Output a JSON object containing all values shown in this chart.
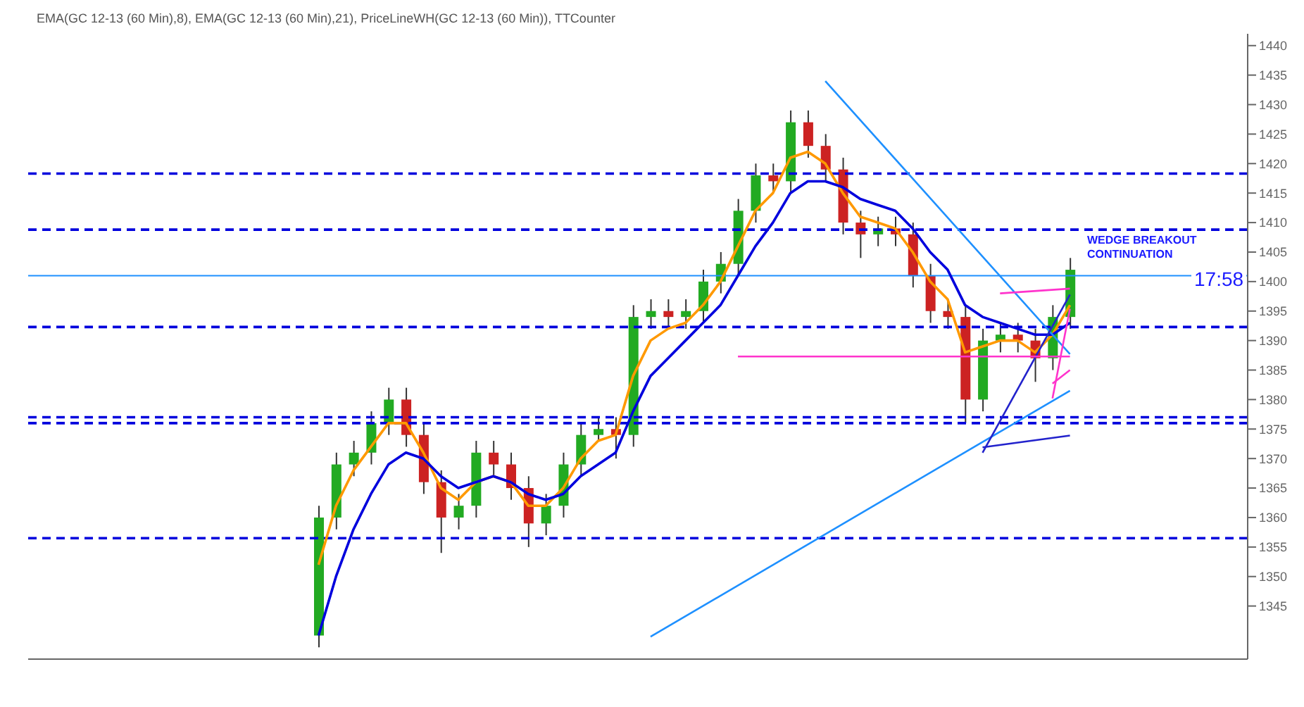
{
  "chart_data": {
    "type": "candlestick",
    "subtitle": "EMA(GC 12-13 (60 Min),8), EMA(GC 12-13 (60 Min),21), PriceLineWH(GC 12-13 (60 Min)), TTCounter",
    "categories": [
      null,
      null,
      null,
      null,
      null,
      null,
      null,
      null,
      null,
      null,
      null,
      null,
      null,
      null,
      null,
      null,
      null,
      null,
      null,
      null,
      null,
      null,
      null,
      null,
      null,
      null,
      null,
      null,
      null,
      null,
      null,
      null,
      null,
      null,
      null,
      null,
      null,
      null,
      null,
      null,
      null,
      null,
      null,
      null
    ],
    "ohlc": [
      [
        1340,
        1362,
        1338,
        1360
      ],
      [
        1360,
        1371,
        1358,
        1369
      ],
      [
        1369,
        1373,
        1367,
        1371
      ],
      [
        1371,
        1378,
        1369,
        1376
      ],
      [
        1376,
        1382,
        1374,
        1380
      ],
      [
        1380,
        1382,
        1372,
        1374
      ],
      [
        1374,
        1376,
        1364,
        1366
      ],
      [
        1366,
        1368,
        1354,
        1360
      ],
      [
        1360,
        1364,
        1358,
        1362
      ],
      [
        1362,
        1373,
        1360,
        1371
      ],
      [
        1371,
        1373,
        1367,
        1369
      ],
      [
        1369,
        1371,
        1363,
        1365
      ],
      [
        1365,
        1367,
        1355,
        1359
      ],
      [
        1359,
        1364,
        1357,
        1362
      ],
      [
        1362,
        1371,
        1360,
        1369
      ],
      [
        1369,
        1376,
        1367,
        1374
      ],
      [
        1374,
        1377,
        1373,
        1375
      ],
      [
        1375,
        1377,
        1370,
        1374
      ],
      [
        1374,
        1396,
        1372,
        1394
      ],
      [
        1394,
        1397,
        1392,
        1395
      ],
      [
        1395,
        1397,
        1392,
        1394
      ],
      [
        1394,
        1397,
        1392,
        1395
      ],
      [
        1395,
        1402,
        1393,
        1400
      ],
      [
        1400,
        1405,
        1398,
        1403
      ],
      [
        1403,
        1414,
        1401,
        1412
      ],
      [
        1412,
        1420,
        1410,
        1418
      ],
      [
        1418,
        1420,
        1415,
        1417
      ],
      [
        1417,
        1429,
        1415,
        1427
      ],
      [
        1427,
        1429,
        1421,
        1423
      ],
      [
        1423,
        1425,
        1417,
        1419
      ],
      [
        1419,
        1421,
        1408,
        1410
      ],
      [
        1410,
        1412,
        1404,
        1408
      ],
      [
        1408,
        1411,
        1406,
        1409
      ],
      [
        1409,
        1411,
        1406,
        1408
      ],
      [
        1408,
        1410,
        1399,
        1401
      ],
      [
        1401,
        1403,
        1393,
        1395
      ],
      [
        1395,
        1397,
        1392,
        1394
      ],
      [
        1394,
        1396,
        1376,
        1380
      ],
      [
        1380,
        1392,
        1378,
        1390
      ],
      [
        1390,
        1393,
        1388,
        1391
      ],
      [
        1391,
        1393,
        1388,
        1390
      ],
      [
        1390,
        1392,
        1383,
        1387
      ],
      [
        1387,
        1396,
        1385,
        1394
      ],
      [
        1394,
        1404,
        1392,
        1402
      ]
    ],
    "colors": [
      "#22aa22",
      "#22aa22",
      "#22aa22",
      "#22aa22",
      "#22aa22",
      "#cc2222",
      "#cc2222",
      "#cc2222",
      "#22aa22",
      "#22aa22",
      "#cc2222",
      "#cc2222",
      "#cc2222",
      "#22aa22",
      "#22aa22",
      "#22aa22",
      "#22aa22",
      "#cc2222",
      "#22aa22",
      "#22aa22",
      "#cc2222",
      "#22aa22",
      "#22aa22",
      "#22aa22",
      "#22aa22",
      "#22aa22",
      "#cc2222",
      "#22aa22",
      "#cc2222",
      "#cc2222",
      "#cc2222",
      "#cc2222",
      "#22aa22",
      "#cc2222",
      "#cc2222",
      "#cc2222",
      "#cc2222",
      "#cc2222",
      "#22aa22",
      "#22aa22",
      "#cc2222",
      "#cc2222",
      "#22aa22",
      "#22aa22"
    ],
    "series": [
      {
        "type": "line",
        "color": "#ff9900",
        "values": [
          1352,
          1362,
          1368,
          1372,
          1376,
          1376,
          1371,
          1365,
          1363,
          1366,
          1367,
          1366,
          1362,
          1362,
          1365,
          1370,
          1373,
          1374,
          1384,
          1390,
          1392,
          1393,
          1396,
          1400,
          1406,
          1412,
          1415,
          1421,
          1422,
          1420,
          1415,
          1411,
          1410,
          1409,
          1405,
          1400,
          1397,
          1388,
          1389,
          1390,
          1390,
          1388,
          1391,
          1396
        ]
      },
      {
        "type": "line",
        "color": "#0000dd",
        "values": [
          1340,
          1350,
          1358,
          1364,
          1369,
          1371,
          1370,
          1367,
          1365,
          1366,
          1367,
          1366,
          1364,
          1363,
          1364,
          1367,
          1369,
          1371,
          1378,
          1384,
          1387,
          1390,
          1393,
          1396,
          1401,
          1406,
          1410,
          1415,
          1417,
          1417,
          1416,
          1414,
          1413,
          1412,
          1409,
          1405,
          1402,
          1396,
          1394,
          1393,
          1392,
          1391,
          1391,
          1393
        ]
      },
      {
        "type": "line",
        "color": "#1e90ff",
        "values": [
          null,
          null,
          null,
          null,
          null,
          null,
          null,
          null,
          null,
          null,
          null,
          null,
          null,
          null,
          null,
          null,
          null,
          null,
          null,
          null,
          null,
          null,
          null,
          null,
          null,
          null,
          null,
          null,
          null,
          1434,
          null,
          null,
          null,
          null,
          null,
          null,
          null,
          null,
          null,
          null,
          null,
          null,
          null,
          1387.7
        ]
      },
      {
        "type": "line",
        "color": "#1e90ff",
        "values": [
          null,
          null,
          null,
          null,
          null,
          null,
          null,
          null,
          null,
          null,
          null,
          null,
          null,
          null,
          null,
          null,
          null,
          null,
          null,
          1339.8,
          null,
          null,
          null,
          null,
          null,
          null,
          null,
          null,
          null,
          null,
          null,
          null,
          null,
          null,
          null,
          null,
          null,
          null,
          null,
          null,
          null,
          null,
          null,
          1381.5
        ]
      },
      {
        "type": "line",
        "color": "#2222cc",
        "values": [
          null,
          null,
          null,
          null,
          null,
          null,
          null,
          null,
          null,
          null,
          null,
          null,
          null,
          null,
          null,
          null,
          null,
          null,
          null,
          null,
          null,
          null,
          null,
          null,
          null,
          null,
          null,
          null,
          null,
          null,
          null,
          null,
          null,
          null,
          null,
          null,
          null,
          null,
          1371.9,
          null,
          null,
          null,
          null,
          1373.9
        ]
      },
      {
        "type": "line",
        "color": "#2222cc",
        "values": [
          null,
          null,
          null,
          null,
          null,
          null,
          null,
          null,
          null,
          null,
          null,
          null,
          null,
          null,
          null,
          null,
          null,
          null,
          null,
          null,
          null,
          null,
          null,
          null,
          null,
          null,
          null,
          null,
          null,
          null,
          null,
          null,
          null,
          null,
          null,
          null,
          null,
          null,
          1371,
          null,
          null,
          null,
          null,
          1397.8
        ]
      },
      {
        "type": "line",
        "color": "#ff33cc",
        "values": [
          null,
          null,
          null,
          null,
          null,
          null,
          null,
          null,
          null,
          null,
          null,
          null,
          null,
          null,
          null,
          null,
          null,
          null,
          null,
          null,
          null,
          null,
          null,
          null,
          1387.3,
          null,
          null,
          null,
          null,
          null,
          null,
          null,
          null,
          null,
          null,
          null,
          null,
          null,
          null,
          null,
          null,
          null,
          null,
          1387.3
        ]
      },
      {
        "type": "line",
        "color": "#ff33cc",
        "values": [
          null,
          null,
          null,
          null,
          null,
          null,
          null,
          null,
          null,
          null,
          null,
          null,
          null,
          null,
          null,
          null,
          null,
          null,
          null,
          null,
          null,
          null,
          null,
          null,
          null,
          null,
          null,
          null,
          null,
          null,
          null,
          null,
          null,
          null,
          null,
          null,
          null,
          null,
          null,
          1398,
          null,
          null,
          null,
          1398.8
        ]
      },
      {
        "type": "line",
        "color": "#ff33cc",
        "values": [
          null,
          null,
          null,
          null,
          null,
          null,
          null,
          null,
          null,
          null,
          null,
          null,
          null,
          null,
          null,
          null,
          null,
          null,
          null,
          null,
          null,
          null,
          null,
          null,
          null,
          null,
          null,
          null,
          null,
          null,
          null,
          null,
          null,
          null,
          null,
          null,
          null,
          null,
          null,
          null,
          null,
          null,
          1382.7,
          1385
        ]
      },
      {
        "type": "line",
        "color": "#ff33cc",
        "values": [
          null,
          null,
          null,
          null,
          null,
          null,
          null,
          null,
          null,
          null,
          null,
          null,
          null,
          null,
          null,
          null,
          null,
          null,
          null,
          null,
          null,
          null,
          null,
          null,
          null,
          null,
          null,
          null,
          null,
          null,
          null,
          null,
          null,
          null,
          null,
          null,
          null,
          null,
          null,
          null,
          null,
          null,
          1380.2,
          1395.4
        ]
      }
    ],
    "ylim": [
      1336,
      1442
    ],
    "yticks": [
      1345,
      1350,
      1355,
      1360,
      1365,
      1370,
      1375,
      1380,
      1385,
      1390,
      1395,
      1400,
      1405,
      1410,
      1415,
      1420,
      1425,
      1430,
      1435,
      1440
    ],
    "tick_labels": "y",
    "marker": "none",
    "line_style": "solid",
    "ref_lines": [
      {
        "axis": "y",
        "value": 1418.3,
        "color": "#0000dd",
        "line_style": "dashed"
      },
      {
        "axis": "y",
        "value": 1408.8,
        "color": "#0000dd",
        "line_style": "dashed"
      },
      {
        "axis": "y",
        "value": 1392.3,
        "color": "#0000dd",
        "line_style": "dashed"
      },
      {
        "axis": "y",
        "value": 1377,
        "color": "#0000dd",
        "line_style": "dashed"
      },
      {
        "axis": "y",
        "value": 1376,
        "color": "#0000dd",
        "line_style": "dashed"
      },
      {
        "axis": "y",
        "value": 1356.5,
        "color": "#0000dd",
        "line_style": "dashed"
      },
      {
        "axis": "y",
        "value": 1401,
        "color": "#1e90ff",
        "line_style": "solid"
      }
    ],
    "annotations": [
      "WEDGE BREAKOUT CONTINUATION",
      "17:58"
    ]
  }
}
